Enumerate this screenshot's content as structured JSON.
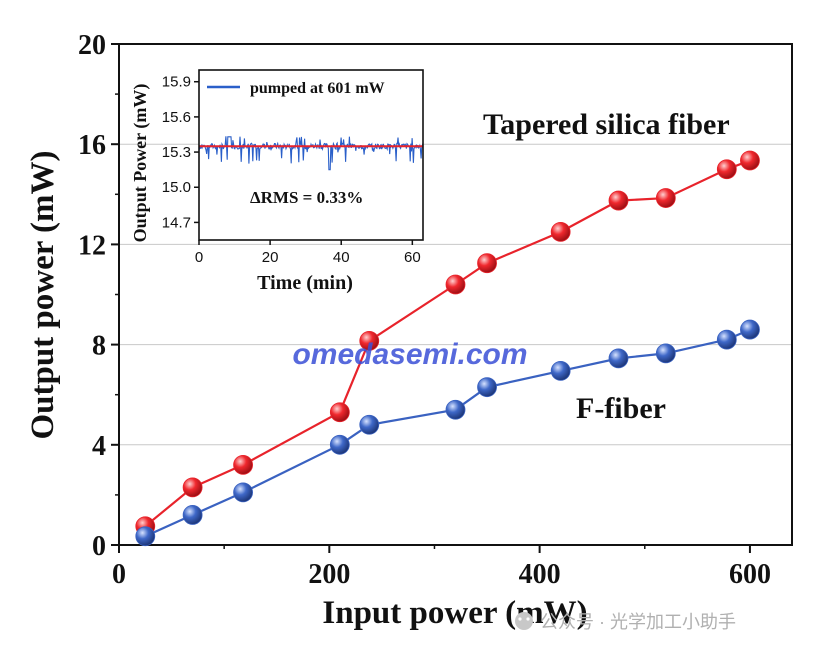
{
  "chart_data": [
    {
      "type": "line",
      "xlabel": "Input power (mW)",
      "ylabel": "Output power (mW)",
      "xlim": [
        0,
        640
      ],
      "ylim": [
        0,
        20
      ],
      "xticks": [
        "0",
        "200",
        "400",
        "600"
      ],
      "yticks": [
        "0",
        "4",
        "8",
        "12",
        "16",
        "20"
      ],
      "grid": "horizontal",
      "series": [
        {
          "name": "Tapered silica fiber",
          "color": "#e8232b",
          "x": [
            25,
            70,
            118,
            210,
            238,
            320,
            350,
            420,
            475,
            520,
            578,
            600
          ],
          "y": [
            0.75,
            2.3,
            3.2,
            5.3,
            8.15,
            10.4,
            11.25,
            12.5,
            13.75,
            13.85,
            15.0,
            15.35
          ]
        },
        {
          "name": "F-fiber",
          "color": "#3a62c1",
          "x": [
            25,
            70,
            118,
            210,
            238,
            320,
            350,
            420,
            475,
            520,
            578,
            600
          ],
          "y": [
            0.35,
            1.2,
            2.1,
            4.0,
            4.8,
            5.4,
            6.3,
            6.95,
            7.45,
            7.65,
            8.2,
            8.6
          ]
        }
      ],
      "annotations": [
        "Tapered silica fiber",
        "F-fiber"
      ]
    },
    {
      "type": "line",
      "xlabel": "Time (min)",
      "ylabel": "Output Power (mW)",
      "xlim": [
        0,
        63
      ],
      "ylim": [
        14.55,
        16.0
      ],
      "xticks": [
        "0",
        "20",
        "40",
        "60"
      ],
      "yticks": [
        "14.7",
        "15.0",
        "15.3",
        "15.6",
        "15.9"
      ],
      "legend": "top-left",
      "series": [
        {
          "name": "pumped at 601 mW",
          "color": "#2a5fc9"
        },
        {
          "name": "",
          "color": "#e8232b",
          "y": [
            15.35
          ]
        }
      ],
      "annotations": [
        "ΔRMS = 0.33%"
      ]
    }
  ],
  "watermark": "omedasemi.com",
  "footer_credit": "公众号 · 光学加工小助手"
}
